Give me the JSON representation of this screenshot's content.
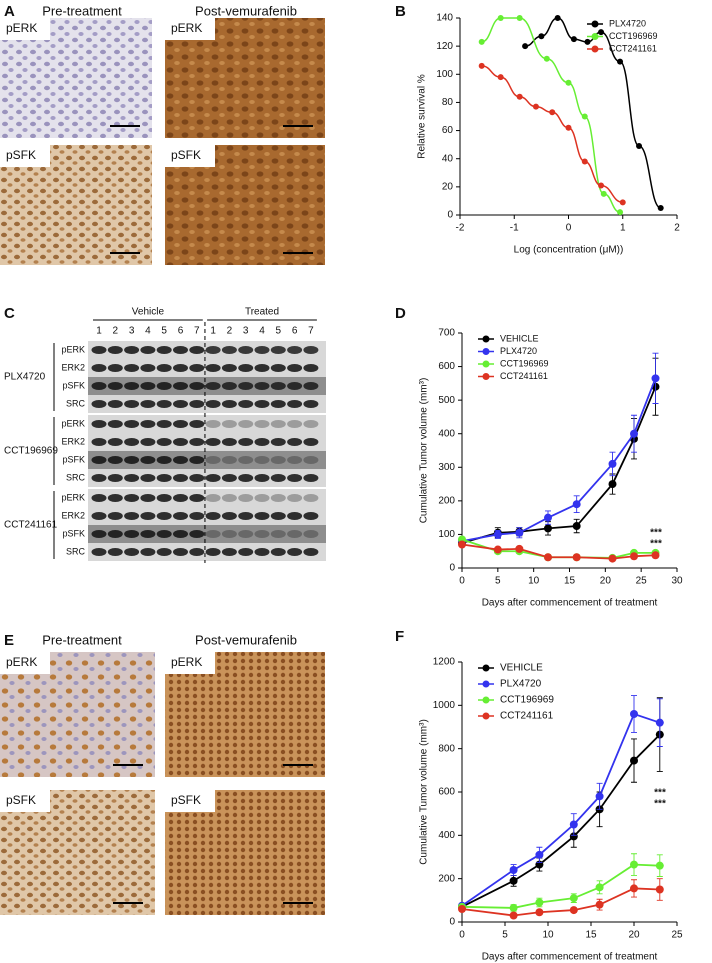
{
  "panel_a": {
    "letter": "A",
    "headers": [
      "Pre-treatment",
      "Post-vemurafenib"
    ],
    "stains": [
      "pERK",
      "pSFK"
    ]
  },
  "panel_c": {
    "letter": "C",
    "groups": [
      "Vehicle",
      "Treated"
    ],
    "lanes": [
      "1",
      "2",
      "3",
      "4",
      "5",
      "6",
      "7"
    ],
    "blots": [
      {
        "drug": "PLX4720",
        "rows": [
          "pERK",
          "ERK2",
          "pSFK",
          "SRC"
        ]
      },
      {
        "drug": "CCT196969",
        "rows": [
          "pERK",
          "ERK2",
          "pSFK",
          "SRC"
        ]
      },
      {
        "drug": "CCT241161",
        "rows": [
          "pERK",
          "ERK2",
          "pSFK",
          "SRC"
        ]
      }
    ]
  },
  "panel_e": {
    "letter": "E",
    "headers": [
      "Pre-treatment",
      "Post-vemurafenib"
    ],
    "stains": [
      "pERK",
      "pSFK"
    ]
  },
  "chart_data": [
    {
      "type": "scatter",
      "letter": "B",
      "xlabel": "Log (concentration (μM))",
      "ylabel": "Relative survival %",
      "xlim": [
        -2,
        2
      ],
      "xticks": [
        -2,
        -1,
        0,
        1,
        2
      ],
      "ylim": [
        0,
        140
      ],
      "yticks": [
        0,
        20,
        40,
        60,
        80,
        100,
        120,
        140
      ],
      "legend": "upper right",
      "series": [
        {
          "name": "PLX4720",
          "color": "#000000",
          "x": [
            -0.8,
            -0.5,
            -0.2,
            0.1,
            0.35,
            0.6,
            0.95,
            1.3,
            1.7
          ],
          "values": [
            120,
            127,
            140,
            125,
            123,
            130,
            109,
            49,
            5
          ]
        },
        {
          "name": "CCT196969",
          "color": "#66ee33",
          "x": [
            -1.6,
            -1.25,
            -0.9,
            -0.4,
            0,
            0.3,
            0.65,
            0.95
          ],
          "values": [
            123,
            140,
            140,
            111,
            94,
            70,
            15,
            2
          ]
        },
        {
          "name": "CCT241161",
          "color": "#dd3322",
          "x": [
            -1.6,
            -1.25,
            -0.9,
            -0.6,
            -0.3,
            0,
            0.3,
            0.6,
            1.0
          ],
          "values": [
            106,
            98,
            84,
            77,
            73,
            62,
            38,
            21,
            9
          ]
        }
      ]
    },
    {
      "type": "line",
      "letter": "D",
      "xlabel": "Days after commencement of treatment",
      "ylabel": "Cumulative Tumor volume (mm³)",
      "xlim": [
        0,
        30
      ],
      "xticks": [
        0,
        5,
        10,
        15,
        20,
        25,
        30
      ],
      "ylim": [
        0,
        700
      ],
      "yticks": [
        0,
        100,
        200,
        300,
        400,
        500,
        600,
        700
      ],
      "legend": "upper left",
      "annotations": [
        "***",
        "***"
      ],
      "x": [
        0,
        5,
        8,
        12,
        16,
        21,
        24,
        27
      ],
      "series": [
        {
          "name": "VEHICLE",
          "color": "#000000",
          "values": [
            75,
            105,
            108,
            118,
            125,
            250,
            385,
            540
          ],
          "errors": [
            10,
            15,
            12,
            20,
            20,
            30,
            60,
            85
          ]
        },
        {
          "name": "PLX4720",
          "color": "#3333ee",
          "values": [
            80,
            100,
            105,
            150,
            190,
            310,
            400,
            565
          ],
          "errors": [
            10,
            12,
            15,
            20,
            25,
            35,
            55,
            75
          ]
        },
        {
          "name": "CCT196969",
          "color": "#66ee33",
          "values": [
            85,
            50,
            50,
            32,
            32,
            30,
            45,
            45
          ],
          "errors": [
            5,
            5,
            5,
            4,
            4,
            4,
            5,
            5
          ]
        },
        {
          "name": "CCT241161",
          "color": "#dd3322",
          "values": [
            70,
            55,
            57,
            32,
            32,
            28,
            35,
            38
          ],
          "errors": [
            5,
            5,
            5,
            4,
            4,
            4,
            5,
            5
          ]
        }
      ]
    },
    {
      "type": "line",
      "letter": "F",
      "xlabel": "Days after commencement of treatment",
      "ylabel": "Cumulative Tumor volume (mm³)",
      "xlim": [
        0,
        25
      ],
      "xticks": [
        0,
        5,
        10,
        15,
        20,
        25
      ],
      "ylim": [
        0,
        1200
      ],
      "yticks": [
        0,
        200,
        400,
        600,
        800,
        1000,
        1200
      ],
      "legend": "upper left",
      "annotations": [
        "***",
        "***"
      ],
      "x": [
        0,
        6,
        9,
        13,
        16,
        20,
        23
      ],
      "series": [
        {
          "name": "VEHICLE",
          "color": "#000000",
          "values": [
            70,
            190,
            265,
            395,
            520,
            745,
            865
          ],
          "errors": [
            10,
            25,
            30,
            50,
            80,
            100,
            170
          ]
        },
        {
          "name": "PLX4720",
          "color": "#3333ee",
          "values": [
            75,
            240,
            310,
            450,
            580,
            960,
            920
          ],
          "errors": [
            10,
            25,
            35,
            50,
            60,
            85,
            110
          ]
        },
        {
          "name": "CCT196969",
          "color": "#66ee33",
          "values": [
            70,
            65,
            90,
            110,
            160,
            265,
            260
          ],
          "errors": [
            10,
            15,
            20,
            20,
            30,
            50,
            50
          ]
        },
        {
          "name": "CCT241161",
          "color": "#dd3322",
          "values": [
            60,
            30,
            45,
            55,
            80,
            155,
            150
          ],
          "errors": [
            10,
            10,
            10,
            10,
            25,
            40,
            50
          ]
        }
      ]
    }
  ]
}
